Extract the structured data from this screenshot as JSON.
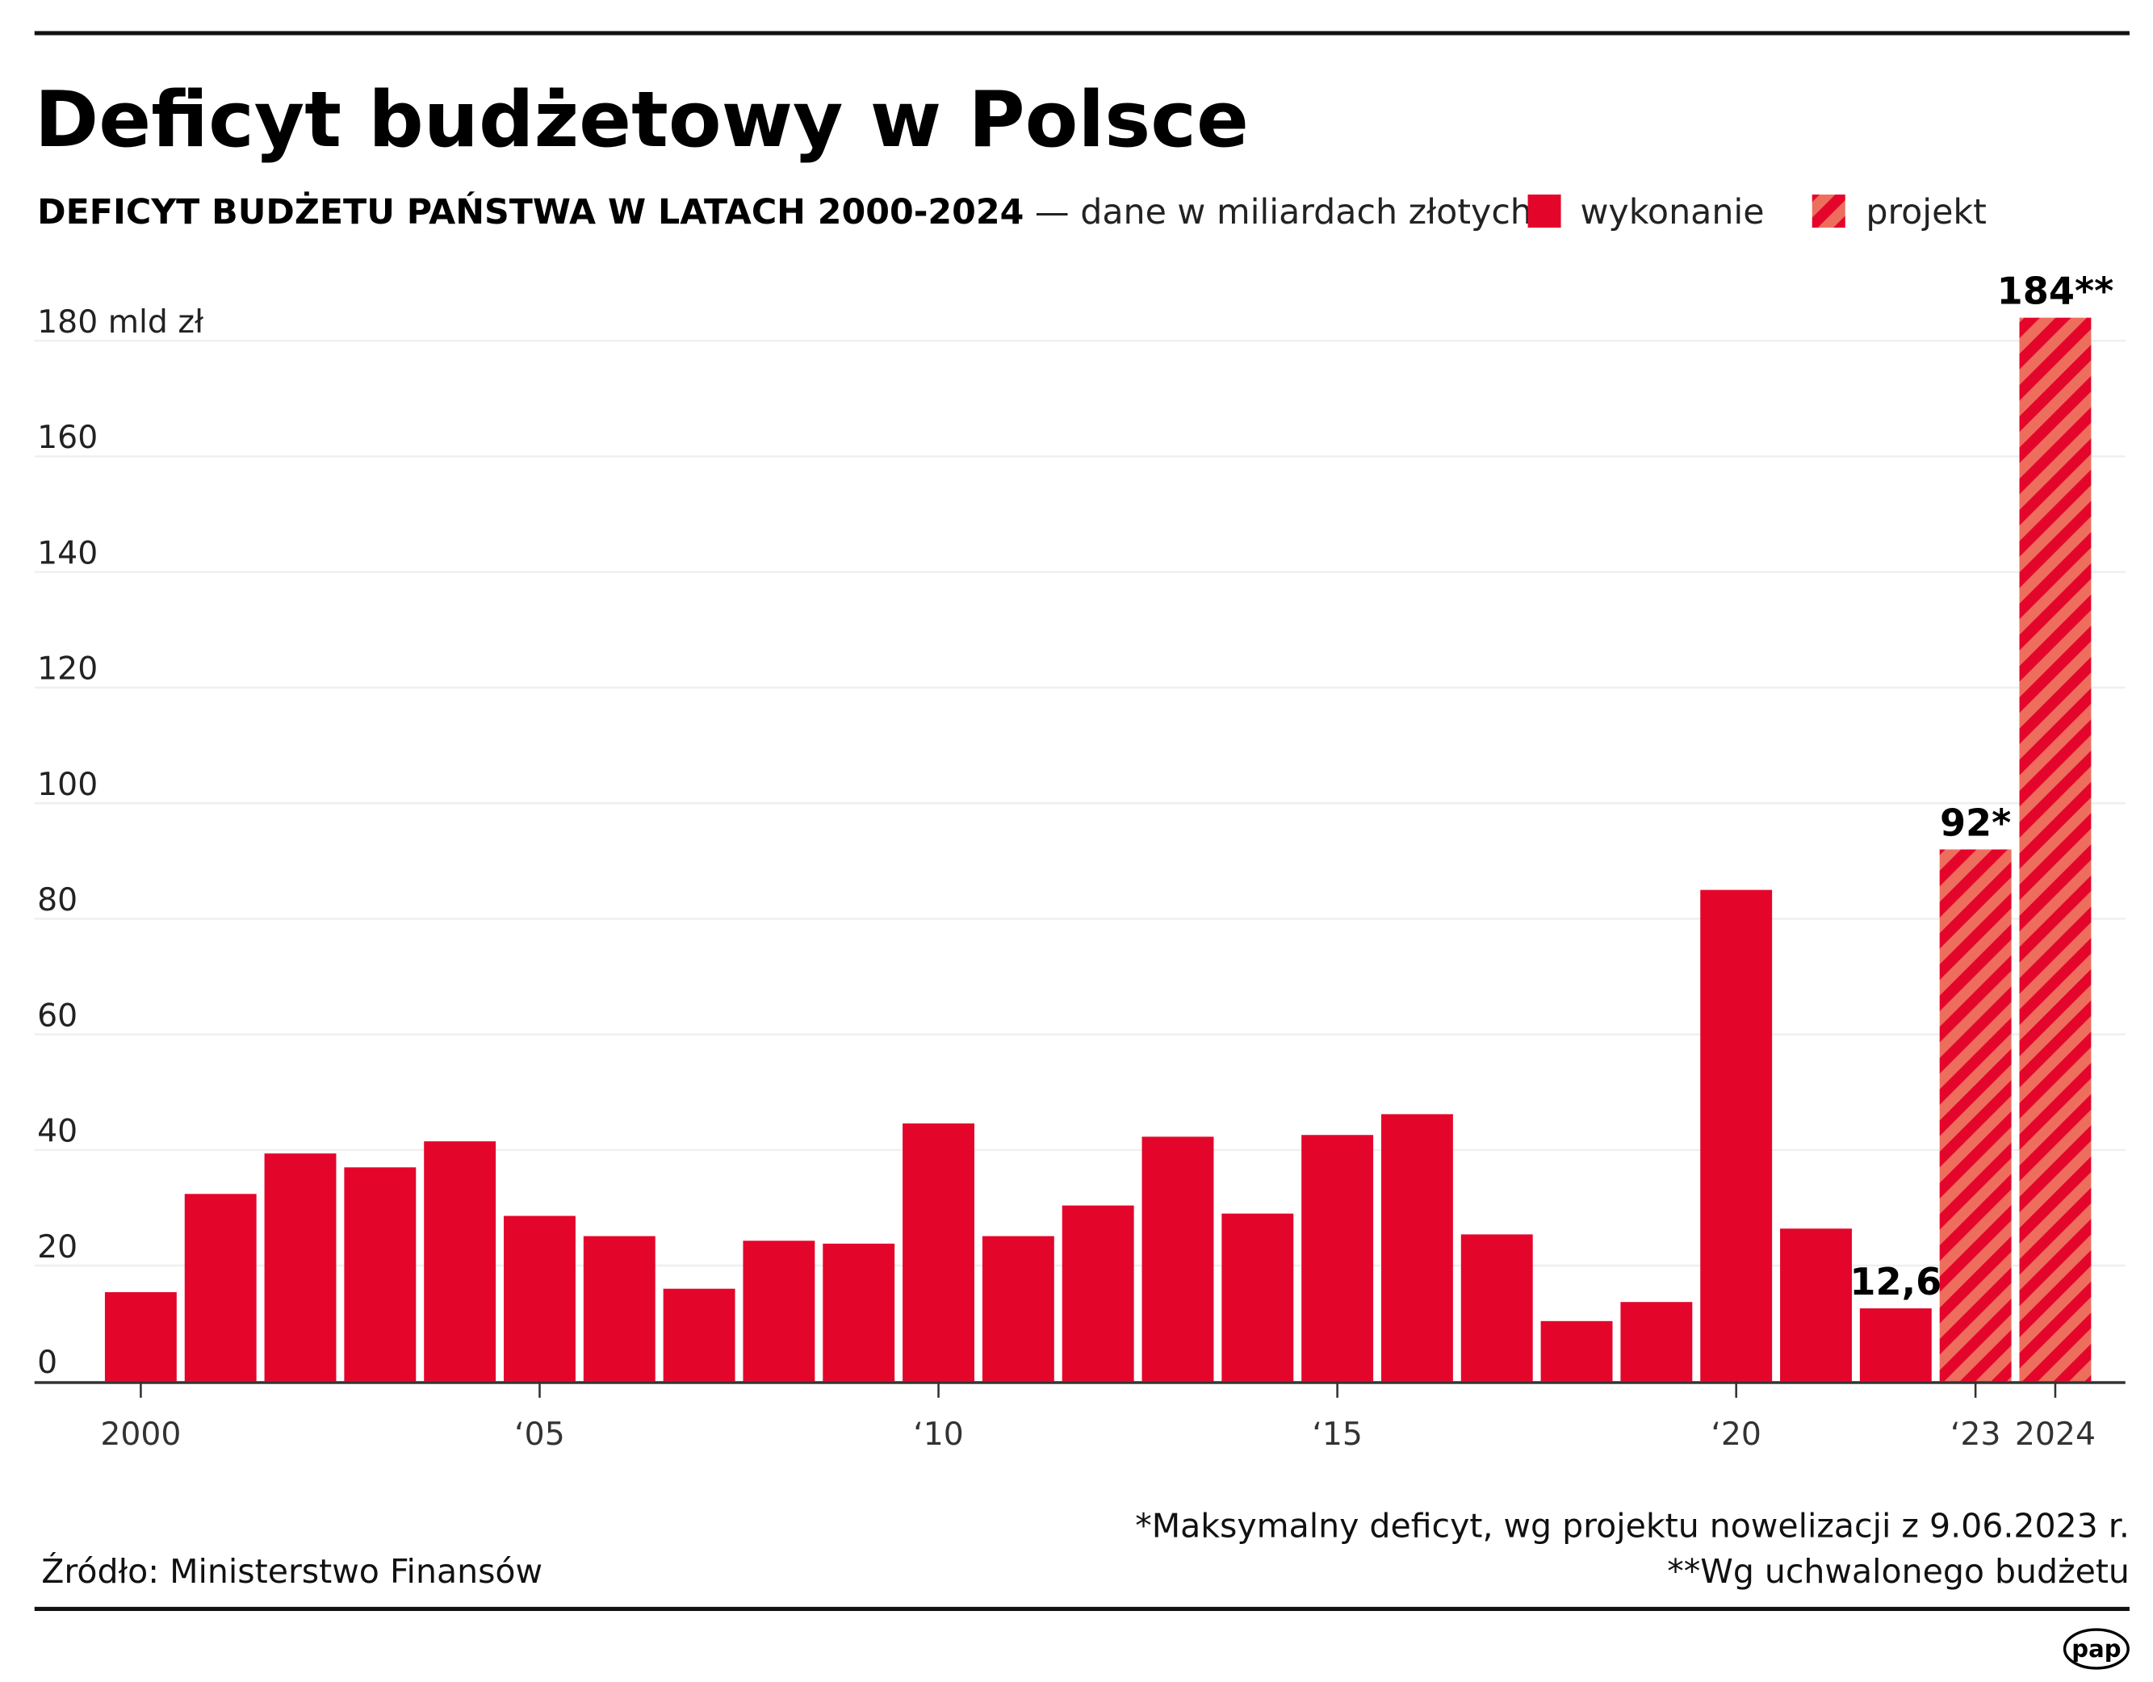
{
  "title": "Deficyt budżetowy w Polsce",
  "subtitle_bold": "DEFICYT BUDŻETU PAŃSTWA W LATACH 2000-2024",
  "subtitle_rest": " — dane w miliardach złotych",
  "colors": {
    "executed": "#E4062A",
    "stripe_light": "#EE6E5E",
    "grid": "#EEF0F0"
  },
  "chart_data": {
    "type": "bar",
    "title": "DEFICYT BUDŻETU PAŃSTWA W LATACH 2000-2024",
    "ylabel": "mld zł",
    "ylim": [
      0,
      180
    ],
    "yticks": [
      0,
      20,
      40,
      60,
      80,
      100,
      120,
      140,
      160,
      180
    ],
    "ytick_labels": [
      "0",
      "20",
      "40",
      "60",
      "80",
      "100",
      "120",
      "140",
      "160",
      "180 mld zł"
    ],
    "grid": true,
    "legend_placement": "top-right",
    "legend": [
      {
        "label": "wykonanie",
        "style": "solid"
      },
      {
        "label": "projekt",
        "style": "hatched"
      }
    ],
    "categories": [
      "2000",
      "2001",
      "2002",
      "2003",
      "2004",
      "2005",
      "2006",
      "2007",
      "2008",
      "2009",
      "2010",
      "2011",
      "2012",
      "2013",
      "2014",
      "2015",
      "2016",
      "2017",
      "2018",
      "2019",
      "2020",
      "2021",
      "2022",
      "2023",
      "2024"
    ],
    "values": [
      15.4,
      32.4,
      39.4,
      37.0,
      41.5,
      28.6,
      25.1,
      16.0,
      24.3,
      23.8,
      44.6,
      25.1,
      30.4,
      42.3,
      29.0,
      42.6,
      46.2,
      25.4,
      10.4,
      13.7,
      85.0,
      26.4,
      12.6,
      92,
      184
    ],
    "status": [
      "wykonanie",
      "wykonanie",
      "wykonanie",
      "wykonanie",
      "wykonanie",
      "wykonanie",
      "wykonanie",
      "wykonanie",
      "wykonanie",
      "wykonanie",
      "wykonanie",
      "wykonanie",
      "wykonanie",
      "wykonanie",
      "wykonanie",
      "wykonanie",
      "wykonanie",
      "wykonanie",
      "wykonanie",
      "wykonanie",
      "wykonanie",
      "wykonanie",
      "wykonanie",
      "projekt",
      "projekt"
    ],
    "xtick_labels": [
      {
        "category": "2000",
        "label": "2000"
      },
      {
        "category": "2005",
        "label": "‘05"
      },
      {
        "category": "2010",
        "label": "‘10"
      },
      {
        "category": "2015",
        "label": "‘15"
      },
      {
        "category": "2020",
        "label": "‘20"
      },
      {
        "category": "2023",
        "label": "‘23"
      },
      {
        "category": "2024",
        "label": "2024"
      }
    ],
    "annotations": [
      {
        "category": "2022",
        "label": "12,6"
      },
      {
        "category": "2023",
        "label": "92*"
      },
      {
        "category": "2024",
        "label": "184**"
      }
    ]
  },
  "footnotes": {
    "note1": "*Maksymalny deficyt, wg projektu nowelizacji z 9.06.2023 r.",
    "note2": "**Wg uchwalonego budżetu",
    "source": "Źródło: Ministerstwo Finansów"
  },
  "logo": "pap"
}
